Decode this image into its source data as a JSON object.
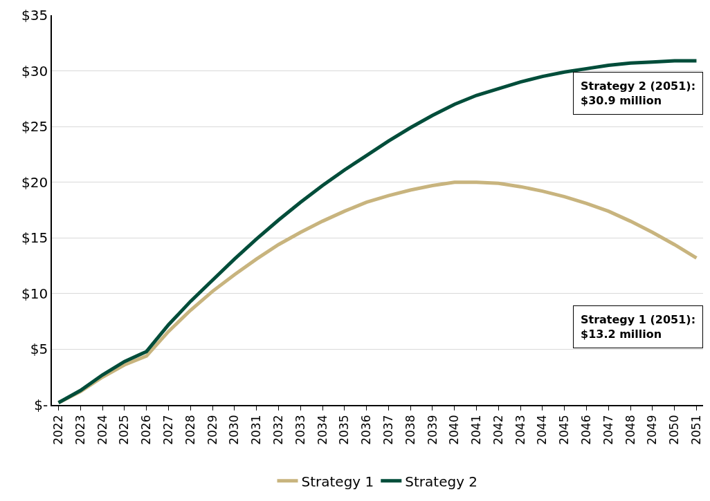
{
  "chart_data": {
    "type": "line",
    "categories": [
      "2022",
      "2023",
      "2024",
      "2025",
      "2026",
      "2027",
      "2028",
      "2029",
      "2030",
      "2031",
      "2032",
      "2033",
      "2034",
      "2035",
      "2036",
      "2037",
      "2038",
      "2039",
      "2040",
      "2041",
      "2042",
      "2043",
      "2044",
      "2045",
      "2046",
      "2047",
      "2048",
      "2049",
      "2050",
      "2051"
    ],
    "series": [
      {
        "name": "Strategy 1",
        "color": "#c8b47e",
        "values": [
          0.2,
          1.2,
          2.5,
          3.6,
          4.4,
          6.6,
          8.5,
          10.2,
          11.7,
          13.1,
          14.4,
          15.5,
          16.5,
          17.4,
          18.2,
          18.8,
          19.3,
          19.7,
          20.0,
          20.0,
          19.9,
          19.6,
          19.2,
          18.7,
          18.1,
          17.4,
          16.5,
          15.5,
          14.4,
          13.2
        ]
      },
      {
        "name": "Strategy 2",
        "color": "#004d3a",
        "values": [
          0.2,
          1.3,
          2.7,
          3.9,
          4.8,
          7.2,
          9.3,
          11.2,
          13.1,
          14.9,
          16.6,
          18.2,
          19.7,
          21.1,
          22.4,
          23.7,
          24.9,
          26.0,
          27.0,
          27.8,
          28.4,
          29.0,
          29.5,
          29.9,
          30.2,
          30.5,
          30.7,
          30.8,
          30.9,
          30.9
        ]
      }
    ],
    "ylim": [
      0,
      35
    ],
    "yticks": [
      {
        "value": 0,
        "label": "$-"
      },
      {
        "value": 5,
        "label": "$5"
      },
      {
        "value": 10,
        "label": "$10"
      },
      {
        "value": 15,
        "label": "$15"
      },
      {
        "value": 20,
        "label": "$20"
      },
      {
        "value": 25,
        "label": "$25"
      },
      {
        "value": 30,
        "label": "$30"
      },
      {
        "value": 35,
        "label": "$35"
      }
    ],
    "grid": "y",
    "legend": "bottom",
    "marker": "none",
    "line_style": "solid",
    "annotations": [
      "Strategy 2 (2051):\n$30.9 million",
      "Strategy 1 (2051):\n$13.2 million"
    ]
  }
}
